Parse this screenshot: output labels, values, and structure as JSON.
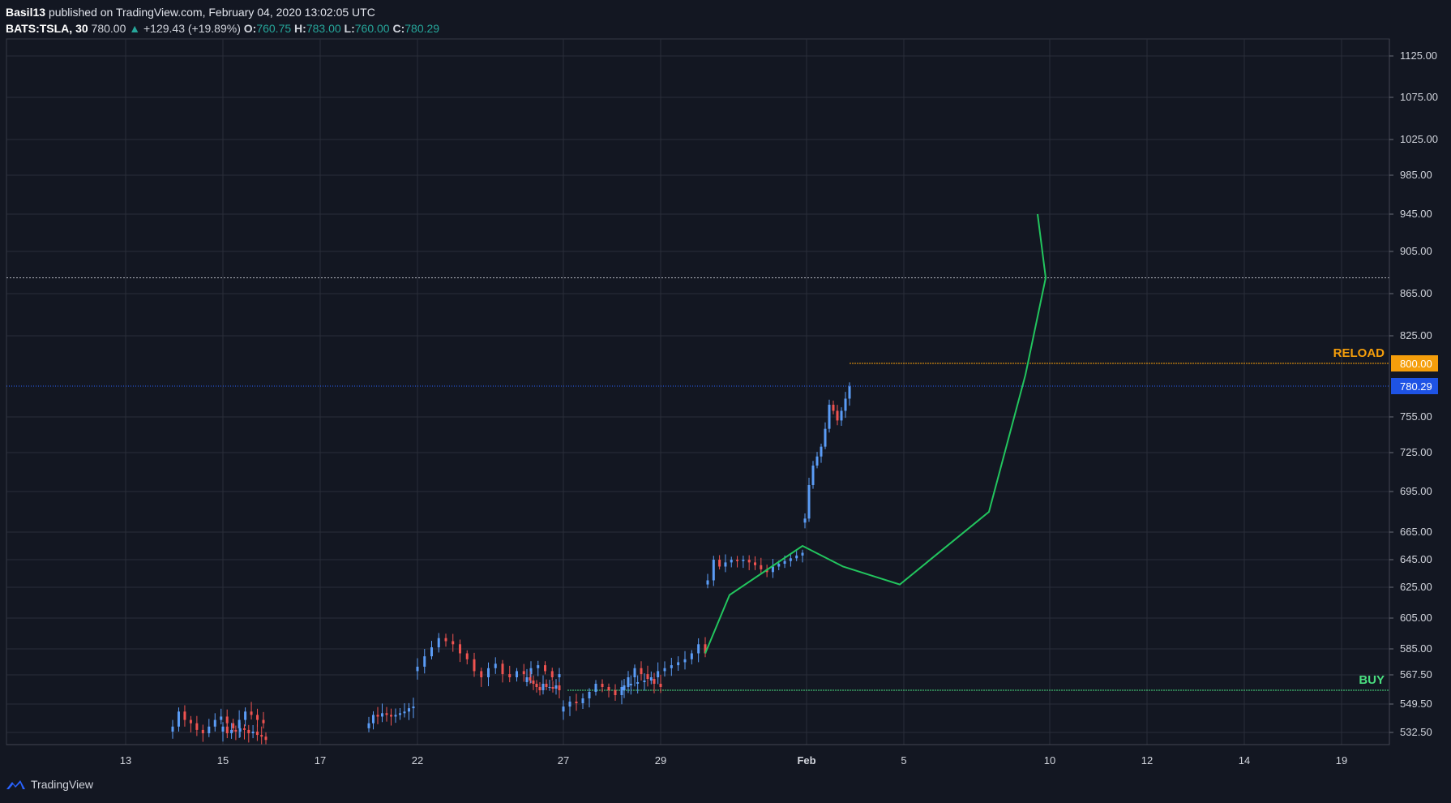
{
  "header": {
    "author": "Basil13",
    "published": "published on TradingView.com, February 04, 2020 13:02:05 UTC",
    "symbol": "BATS:TSLA, 30",
    "last": "780.00",
    "change": "+129.43 (+19.89%)",
    "o_label": "O:",
    "o": "760.75",
    "h_label": "H:",
    "h": "783.00",
    "l_label": "L:",
    "l": "760.00",
    "c_label": "C:",
    "c": "780.29"
  },
  "footer": {
    "brand": "TradingView"
  },
  "colors": {
    "background": "#131722",
    "grid": "#2a2e39",
    "up": "#5b9cf6",
    "down": "#ef5350",
    "projection": "#22c55e",
    "reload": "#f59e0b",
    "buy": "#4ade80",
    "last_price": "#1e53e5"
  },
  "chart_data": {
    "type": "candlestick",
    "y_ticks": [
      "1125.00",
      "1075.00",
      "1025.00",
      "985.00",
      "945.00",
      "905.00",
      "865.00",
      "825.00",
      "800.00",
      "780.29",
      "755.00",
      "725.00",
      "695.00",
      "665.00",
      "645.00",
      "625.00",
      "605.00",
      "585.00",
      "567.50",
      "549.50",
      "532.50"
    ],
    "x_ticks": [
      "13",
      "15",
      "17",
      "22",
      "27",
      "29",
      "Feb",
      "5",
      "10",
      "12",
      "14",
      "19"
    ],
    "annotations": [
      {
        "label": "RELOAD",
        "price": 800.0,
        "price_label": "800.00"
      },
      {
        "label": "BUY",
        "price": 558.0
      }
    ],
    "last_price": {
      "value": 780.29,
      "label": "780.29"
    },
    "resistance_dotted": 880.0,
    "projection_path_prices": [
      {
        "date": "Jan 30 13:00",
        "price": 582
      },
      {
        "date": "Jan 31 10:00",
        "price": 620
      },
      {
        "date": "Feb 03 09:30",
        "price": 655
      },
      {
        "date": "Feb 04",
        "price": 640
      },
      {
        "date": "Feb 05",
        "price": 627
      },
      {
        "date": "Feb 07",
        "price": 680
      },
      {
        "date": "Feb 09",
        "price": 790
      },
      {
        "date": "Feb 10",
        "price": 880
      },
      {
        "date": "Feb 09 18:00",
        "price": 945
      }
    ],
    "candle_segments": [
      {
        "date": "Jan 14",
        "prices": [
          536,
          545,
          540,
          538,
          534,
          532,
          536,
          540,
          542,
          538,
          535,
          540,
          545,
          543,
          540,
          538
        ]
      },
      {
        "date": "Jan 15",
        "prices": [
          536,
          532,
          534,
          533,
          535,
          534,
          532,
          533,
          531,
          530,
          528
        ]
      },
      {
        "date": "Jan 17",
        "prices": [
          538,
          543,
          542,
          544,
          543,
          542,
          543,
          544,
          545,
          547,
          548
        ]
      },
      {
        "date": "Jan 22",
        "prices": [
          573,
          580,
          586,
          592,
          590,
          588,
          582,
          578,
          570,
          566,
          572,
          575,
          568,
          566,
          570,
          568,
          572,
          574,
          570,
          566,
          568
        ]
      },
      {
        "date": "Jan 23-24",
        "prices": [
          566,
          564,
          562,
          560,
          558,
          562,
          560,
          560,
          559,
          561,
          558
        ]
      },
      {
        "date": "Jan 27",
        "prices": [
          548,
          551,
          550,
          553,
          557,
          562,
          560,
          558,
          555,
          560,
          566,
          572,
          568,
          565,
          562,
          560
        ]
      },
      {
        "date": "Jan 28-29",
        "prices": [
          561,
          562,
          563,
          564,
          566,
          570,
          572,
          574,
          576,
          578,
          582,
          588,
          582
        ]
      },
      {
        "date": "Jan 30",
        "prices": [
          630,
          645,
          640,
          643,
          645,
          644,
          645,
          643,
          641,
          638,
          636,
          640,
          642,
          644,
          646,
          648,
          650
        ]
      },
      {
        "date": "Feb 03",
        "prices": [
          675,
          700,
          715,
          722,
          730,
          745,
          765,
          760,
          752,
          760,
          770,
          780
        ]
      }
    ]
  }
}
